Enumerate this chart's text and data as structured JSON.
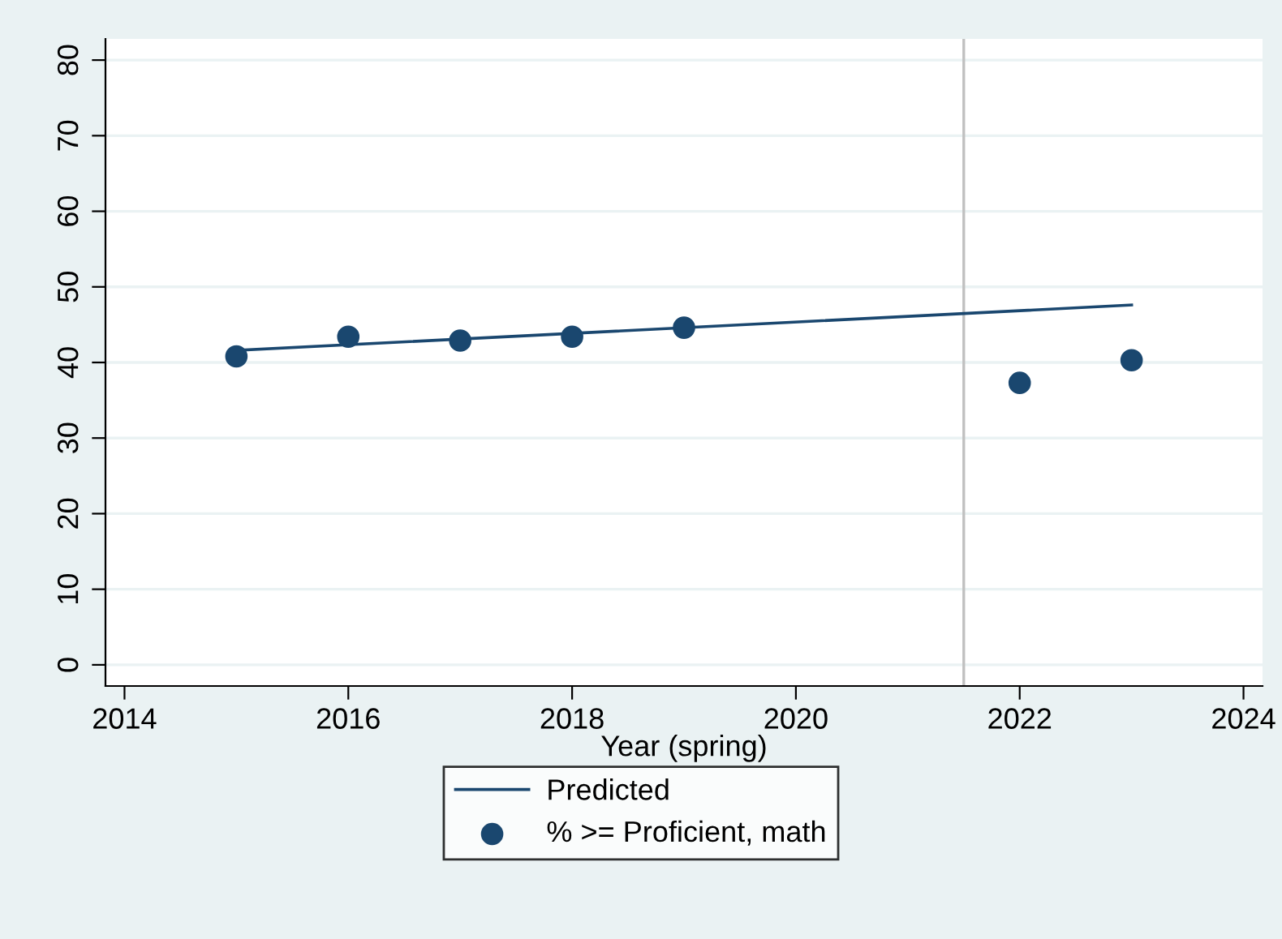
{
  "chart_data": {
    "type": "scatter",
    "xlabel": "Year (spring)",
    "xlim": [
      2013.83,
      2024.17
    ],
    "xticks": [
      2014,
      2016,
      2018,
      2020,
      2022,
      2024
    ],
    "ylim": [
      -2.8,
      82.8
    ],
    "yticks": [
      0,
      10,
      20,
      30,
      40,
      50,
      60,
      70,
      80
    ],
    "grid": "y",
    "legend": "bottom",
    "series": [
      {
        "name": "Predicted",
        "type": "line",
        "color": "#1a476f",
        "x": [
          2015,
          2023
        ],
        "values": [
          41.6,
          47.6
        ],
        "marker": "none",
        "line_style": "solid"
      },
      {
        "name": "% >= Proficient, math",
        "color": "#1a476f",
        "x": [
          2015,
          2016,
          2017,
          2018,
          2019,
          2022,
          2023
        ],
        "values": [
          40.8,
          43.4,
          42.9,
          43.4,
          44.6,
          37.3,
          40.3
        ],
        "marker": "circle"
      }
    ],
    "ref_lines": [
      {
        "axis": "x",
        "value": 2021.5,
        "color": "#c0c0c0",
        "line_style": "solid"
      }
    ]
  }
}
